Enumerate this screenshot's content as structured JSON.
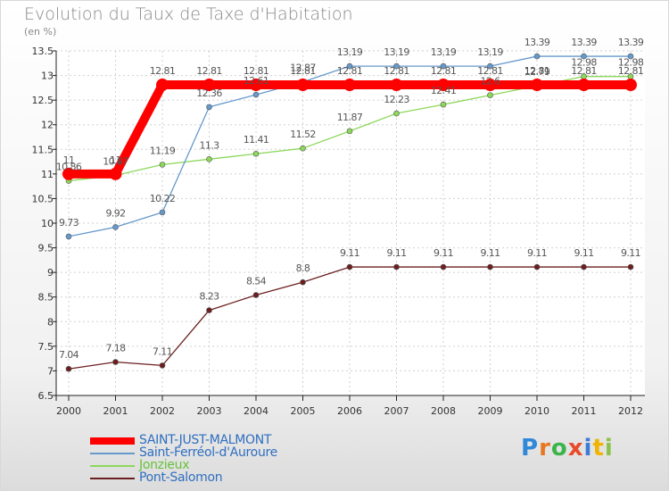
{
  "title": "Evolution du Taux de Taxe d'Habitation",
  "unit_label": "(en %)",
  "chart_data": {
    "type": "line",
    "title": "Evolution du Taux de Taxe d'Habitation",
    "ylabel": "(en %)",
    "xlabel": "",
    "ylim": [
      6.5,
      13.5
    ],
    "yticks": [
      "6.5",
      "7",
      "7.5",
      "8",
      "8.5",
      "9",
      "9.5",
      "10",
      "10.5",
      "11",
      "11.5",
      "12",
      "12.5",
      "13",
      "13.5"
    ],
    "grid": true,
    "x": [
      "2000",
      "2001",
      "2002",
      "2003",
      "2004",
      "2005",
      "2006",
      "2007",
      "2008",
      "2009",
      "2010",
      "2011",
      "2012"
    ],
    "series": [
      {
        "name": "Pont-Salomon",
        "color": "#6b1f1f",
        "values": [
          7.04,
          7.18,
          7.11,
          8.23,
          8.54,
          8.8,
          9.11,
          9.11,
          9.11,
          9.11,
          9.11,
          9.11,
          9.11
        ],
        "labels": [
          "7.04",
          "7.18",
          "7.11",
          "8.23",
          "8.54",
          "8.8",
          "9.11",
          "9.11",
          "9.11",
          "9.11",
          "9.11",
          "9.11",
          "9.11"
        ]
      },
      {
        "name": "Jonzieux",
        "color": "#8cd85a",
        "values": [
          10.86,
          10.97,
          11.19,
          11.3,
          11.41,
          11.52,
          11.87,
          12.23,
          12.41,
          12.6,
          12.79,
          12.98,
          12.98
        ],
        "labels": [
          "10.86",
          "10.97",
          "11.19",
          "11.3",
          "11.41",
          "11.52",
          "11.87",
          "12.23",
          "12.41",
          "12.6",
          "12.79",
          "12.98",
          "12.98"
        ]
      },
      {
        "name": "Saint-Ferréol-d'Auroure",
        "color": "#6699cc",
        "values": [
          9.73,
          9.92,
          10.22,
          12.36,
          12.61,
          12.87,
          13.19,
          13.19,
          13.19,
          13.19,
          13.39,
          13.39,
          13.39
        ],
        "labels": [
          "9.73",
          "9.92",
          "10.22",
          "12.36",
          "12.61",
          "12.87",
          "13.19",
          "13.19",
          "13.19",
          "13.19",
          "13.39",
          "13.39",
          "13.39"
        ]
      },
      {
        "name": "SAINT-JUST-MALMONT",
        "color": "#ff0000",
        "values": [
          11,
          11,
          12.81,
          12.81,
          12.81,
          12.81,
          12.81,
          12.81,
          12.81,
          12.81,
          12.81,
          12.81,
          12.81
        ],
        "labels": [
          "11",
          "11",
          "12.81",
          "12.81",
          "12.81",
          "12.81",
          "12.81",
          "12.81",
          "12.81",
          "12.81",
          "12.81",
          "12.81",
          "12.81"
        ]
      }
    ]
  },
  "legend": [
    {
      "name": "SAINT-JUST-MALMONT",
      "color": "#ff0000"
    },
    {
      "name": "Saint-Ferréol-d'Auroure",
      "color": "#6699cc"
    },
    {
      "name": "Jonzieux",
      "color": "#8cd85a"
    },
    {
      "name": "Pont-Salomon",
      "color": "#6b1f1f"
    }
  ],
  "logo": {
    "text": "Proxiti",
    "letters": [
      "P",
      "r",
      "o",
      "x",
      "i",
      "t",
      "i"
    ],
    "colors": [
      "#2f88d8",
      "#e87722",
      "#3bb54a",
      "#e84a2a",
      "#3d7bd8",
      "#f0b400",
      "#8bc34a"
    ]
  }
}
